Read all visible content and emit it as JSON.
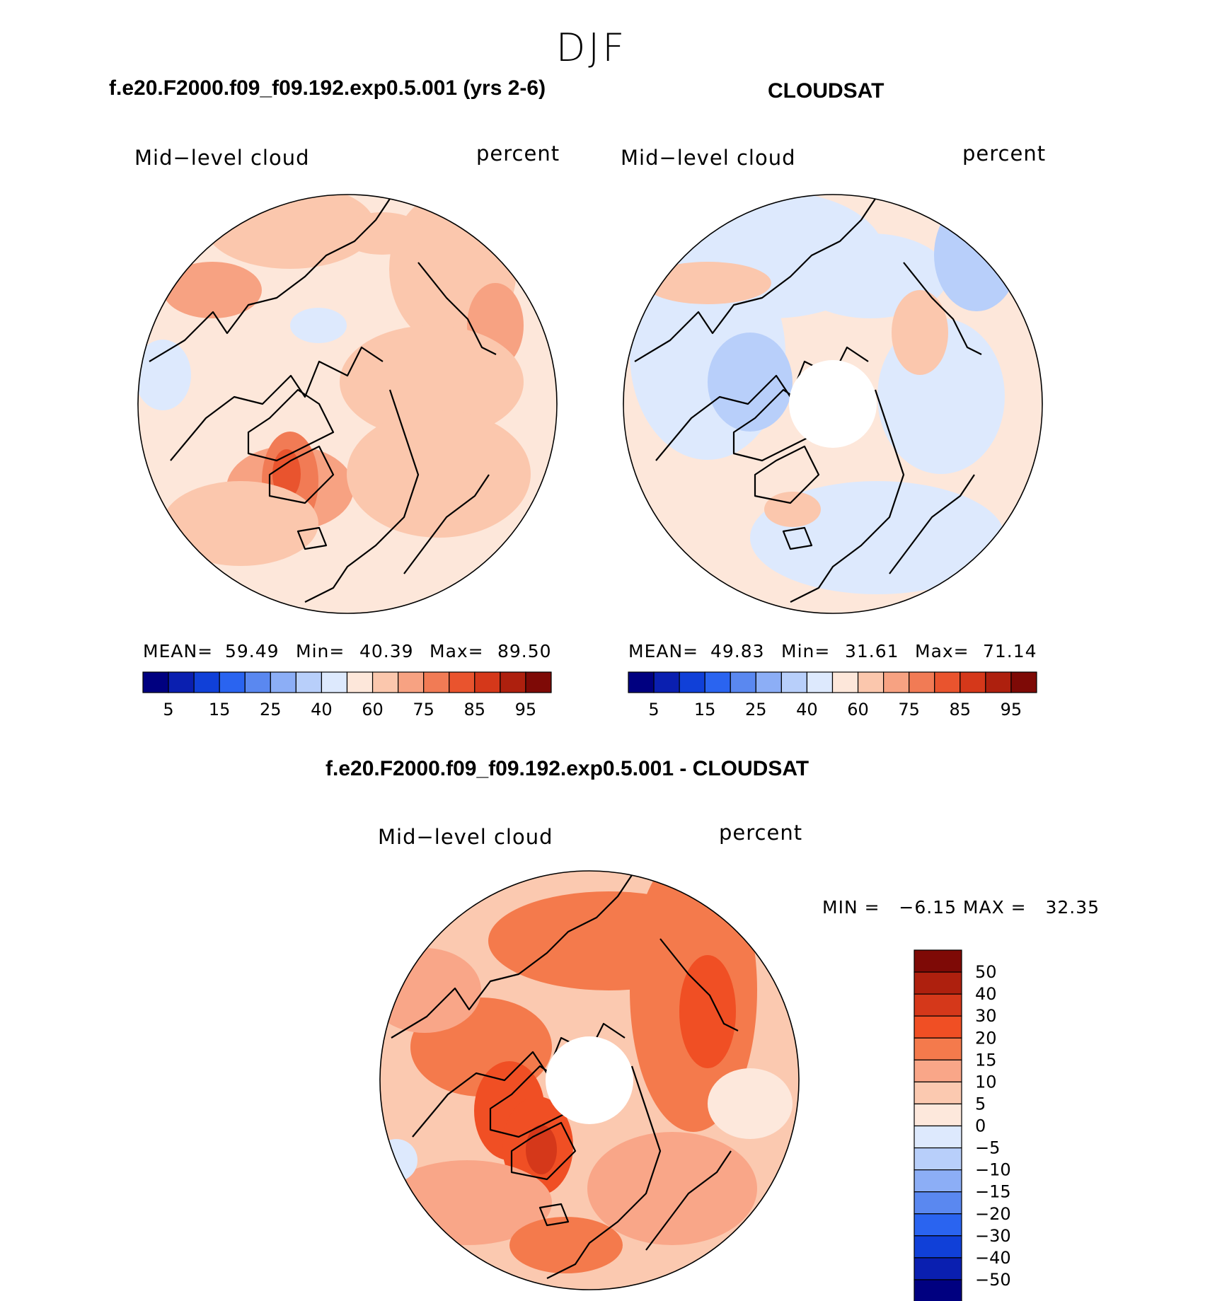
{
  "figure": {
    "season": "DJF"
  },
  "panels": [
    {
      "title": "f.e20.F2000.f09_f09.192.exp0.5.001 (yrs 2-6)",
      "variable": "Mid−level cloud",
      "units": "percent",
      "mean_label": "MEAN=",
      "mean": "59.49",
      "min_label": "Min=",
      "min": "40.39",
      "max_label": "Max=",
      "max": "89.50"
    },
    {
      "title": "CLOUDSAT",
      "variable": "Mid−level cloud",
      "units": "percent",
      "mean_label": "MEAN=",
      "mean": "49.83",
      "min_label": "Min=",
      "min": "31.61",
      "max_label": "Max=",
      "max": "71.14"
    },
    {
      "title": "f.e20.F2000.f09_f09.192.exp0.5.001 - CLOUDSAT",
      "variable": "Mid−level cloud",
      "units": "percent",
      "minmax": "MIN =   −6.15 MAX =   32.35"
    }
  ],
  "chart_data": [
    {
      "type": "heatmap",
      "projection": "north-polar-stereographic",
      "title": "f.e20.F2000.f09_f09.192.exp0.5.001 (yrs 2-6)",
      "variable": "Mid-level cloud",
      "units": "percent",
      "mean": 59.49,
      "min": 40.39,
      "max": 89.5,
      "colorbar_ticks": [
        "5",
        "15",
        "25",
        "40",
        "60",
        "75",
        "85",
        "95"
      ]
    },
    {
      "type": "heatmap",
      "projection": "north-polar-stereographic",
      "title": "CLOUDSAT",
      "variable": "Mid-level cloud",
      "units": "percent",
      "mean": 49.83,
      "min": 31.61,
      "max": 71.14,
      "colorbar_ticks": [
        "5",
        "15",
        "25",
        "40",
        "60",
        "75",
        "85",
        "95"
      ]
    },
    {
      "type": "heatmap",
      "projection": "north-polar-stereographic",
      "title": "f.e20.F2000.f09_f09.192.exp0.5.001 - CLOUDSAT",
      "variable": "Mid-level cloud",
      "units": "percent",
      "min": -6.15,
      "max": 32.35,
      "colorbar_ticks": [
        "50",
        "40",
        "30",
        "20",
        "15",
        "10",
        "5",
        "0",
        "−5",
        "−10",
        "−15",
        "−20",
        "−30",
        "−40",
        "−50"
      ]
    }
  ],
  "colors": {
    "abs_scale": [
      "#000080",
      "#0a1fb0",
      "#1040d8",
      "#2a64f0",
      "#5a88f0",
      "#8caef6",
      "#b8cffa",
      "#dde9fd",
      "#fde7da",
      "#fbc7ad",
      "#f7a282",
      "#f17b55",
      "#e9542e",
      "#d5381a",
      "#ae200e",
      "#7e0a06"
    ],
    "diff_scale": [
      "#7e0a06",
      "#ae200e",
      "#d5381a",
      "#f04f24",
      "#f47a4c",
      "#f9a688",
      "#fbc9b0",
      "#fde8dc",
      "#dde9fd",
      "#b8cffa",
      "#8caef6",
      "#5a88f0",
      "#2a64f0",
      "#1040d8",
      "#0a1fb0",
      "#000080"
    ]
  }
}
